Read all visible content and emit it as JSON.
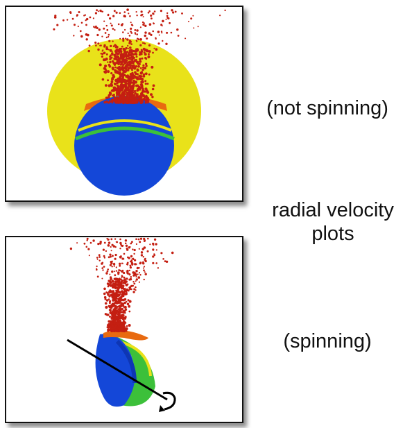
{
  "captions": {
    "top": "(not spinning)",
    "middle_line1": "radial velocity",
    "middle_line2": "plots",
    "bottom": "(spinning)"
  },
  "colors": {
    "core_blue": "#1447d8",
    "core_blue_dark": "#0e36b4",
    "ejecta_red": "#c41f12",
    "band_orange": "#e86a10",
    "band_yellow": "#e9e21a",
    "band_green": "#3cc03a",
    "spin_axis": "#000000"
  },
  "icons": {
    "spin_arrow": "curved-arrow-icon"
  }
}
